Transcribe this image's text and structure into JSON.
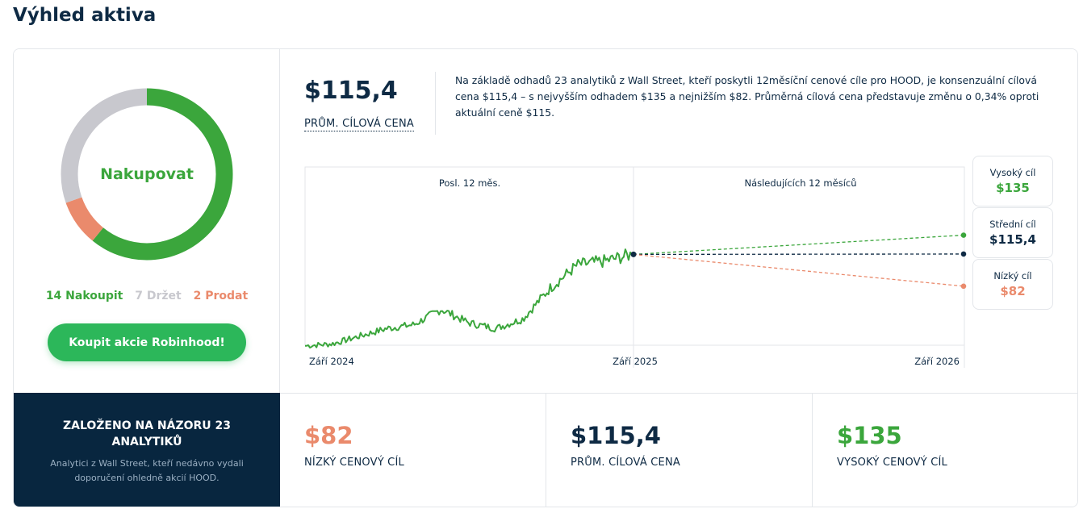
{
  "page_title": "Výhled aktiva",
  "rating": {
    "label": "Nakupovat",
    "counts": {
      "buy": 14,
      "hold": 7,
      "sell": 2
    },
    "count_labels": {
      "buy": "14 Nakoupit",
      "hold": "7 Držet",
      "sell": "2 Prodat"
    },
    "colors": {
      "buy": "#3ba63c",
      "hold": "#c8c8ce",
      "sell": "#ea8a6c"
    }
  },
  "buy_button_label": "Koupit akcie Robinhood!",
  "avg_target": {
    "value": "$115,4",
    "label": "PRŮM. CÍLOVÁ CENA"
  },
  "summary_text": "Na základě odhadů 23 analytiků z Wall Street, kteří poskytli 12měsíční cenové cíle pro HOOD, je konsenzuální cílová cena $115,4 – s nejvyšším odhadem $135 a nejnižším $82. Průměrná cílová cena představuje změnu o 0,34% oproti aktuální ceně $115.",
  "chart_data": {
    "type": "line",
    "period_labels": {
      "past": "Posl. 12 měs.",
      "future": "Následujících 12 měsíců"
    },
    "x_tick_labels": [
      "Září 2024",
      "Září 2025",
      "Září 2026"
    ],
    "price_history": {
      "name": "HOOD",
      "x": [
        "2024-09",
        "2024-10",
        "2024-11",
        "2024-12",
        "2025-01",
        "2025-02",
        "2025-03",
        "2025-04",
        "2025-05",
        "2025-06",
        "2025-07",
        "2025-08",
        "2025-09"
      ],
      "values": [
        20,
        22,
        30,
        38,
        42,
        58,
        44,
        38,
        48,
        80,
        104,
        108,
        115
      ]
    },
    "current_price": 115,
    "targets": [
      {
        "name": "Vysoký cíl",
        "value": 135,
        "display": "$135",
        "color": "#3ba63c"
      },
      {
        "name": "Střední cíl",
        "value": 115.4,
        "display": "$115,4",
        "color": "#0e2a44"
      },
      {
        "name": "Nízký cíl",
        "value": 82,
        "display": "$82",
        "color": "#ea8a6c"
      }
    ],
    "line_color": "#3ba63c",
    "grid": false
  },
  "bottom": {
    "title": "ZALOŽENO NA NÁZORU 23 ANALYTIKŮ",
    "subtitle": "Analytici z Wall Street, kteří nedávno vydali doporučení ohledně akcií HOOD.",
    "low": {
      "value": "$82",
      "label": "NÍZKÝ CENOVÝ CÍL",
      "color": "#ea8a6c"
    },
    "avg": {
      "value": "$115,4",
      "label": "PRŮM. CÍLOVÁ CENA",
      "color": "#0e2a44"
    },
    "high": {
      "value": "$135",
      "label": "VYSOKÝ CENOVÝ CÍL",
      "color": "#3ba63c"
    }
  }
}
